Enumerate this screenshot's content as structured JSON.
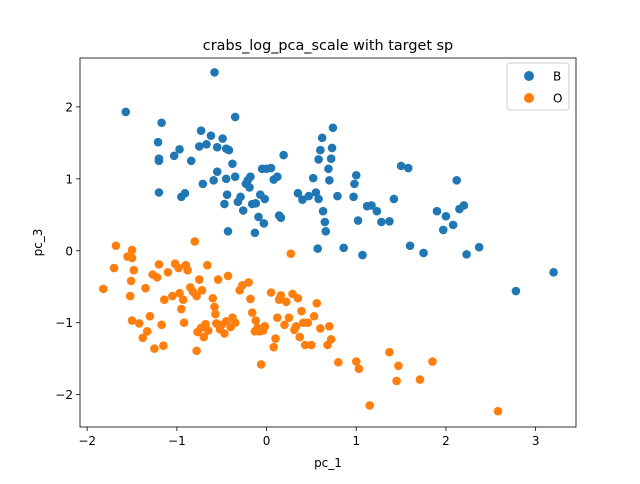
{
  "chart_data": {
    "type": "scatter",
    "title": "crabs_log_pca_scale with target sp",
    "xlabel": "pc_1",
    "ylabel": "pc_3",
    "xlim": [
      -2.08,
      3.45
    ],
    "ylim": [
      -2.45,
      2.68
    ],
    "x_ticks": [
      -2,
      -1,
      0,
      1,
      2,
      3
    ],
    "x_tick_labels": [
      "−2",
      "−1",
      "0",
      "1",
      "2",
      "3"
    ],
    "y_ticks": [
      -2,
      -1,
      0,
      1,
      2
    ],
    "y_tick_labels": [
      "−2",
      "−1",
      "0",
      "1",
      "2"
    ],
    "grid": false,
    "legend_position": "top-right",
    "series": [
      {
        "name": "B",
        "color": "#1f77b4",
        "points": [
          [
            -1.57,
            1.93
          ],
          [
            -0.58,
            2.48
          ],
          [
            -1.21,
            1.51
          ],
          [
            -1.17,
            1.78
          ],
          [
            -1.2,
            1.28
          ],
          [
            -1.2,
            1.25
          ],
          [
            -1.2,
            0.81
          ],
          [
            -1.03,
            1.32
          ],
          [
            -0.97,
            1.41
          ],
          [
            -0.95,
            0.75
          ],
          [
            -0.91,
            0.8
          ],
          [
            -0.84,
            1.25
          ],
          [
            -0.75,
            1.45
          ],
          [
            -0.73,
            1.67
          ],
          [
            -0.67,
            1.48
          ],
          [
            -0.62,
            1.6
          ],
          [
            -0.55,
            1.1
          ],
          [
            -0.55,
            1.44
          ],
          [
            -0.49,
            1.56
          ],
          [
            -0.45,
            1.42
          ],
          [
            -0.42,
            1.4
          ],
          [
            -0.38,
            1.21
          ],
          [
            -0.71,
            0.93
          ],
          [
            -0.59,
            0.98
          ],
          [
            -0.47,
            0.65
          ],
          [
            -0.44,
            0.78
          ],
          [
            -0.43,
            0.27
          ],
          [
            -0.35,
            1.03
          ],
          [
            -0.32,
            0.68
          ],
          [
            -0.29,
            0.75
          ],
          [
            -0.26,
            0.56
          ],
          [
            -0.23,
            0.93
          ],
          [
            -0.21,
            0.98
          ],
          [
            -0.19,
            0.88
          ],
          [
            -0.18,
            1.03
          ],
          [
            -0.16,
            0.65
          ],
          [
            -0.12,
            0.66
          ],
          [
            -0.09,
            0.47
          ],
          [
            -0.07,
            0.78
          ],
          [
            -0.05,
            1.14
          ],
          [
            -0.03,
            0.38
          ],
          [
            -0.02,
            0.72
          ],
          [
            0,
            1.14
          ],
          [
            0.05,
            1.15
          ],
          [
            0.08,
            0.99
          ],
          [
            0.12,
            1.03
          ],
          [
            0.14,
            0.49
          ],
          [
            0.16,
            0.46
          ],
          [
            0.19,
            1.33
          ],
          [
            -0.35,
            1.86
          ],
          [
            -0.45,
            1.0
          ],
          [
            -0.13,
            0.25
          ],
          [
            0.35,
            0.8
          ],
          [
            0.4,
            0.71
          ],
          [
            0.47,
            0.76
          ],
          [
            0.52,
            1.01
          ],
          [
            0.55,
            0.81
          ],
          [
            0.58,
            1.27
          ],
          [
            0.6,
            1.4
          ],
          [
            0.62,
            1.57
          ],
          [
            0.58,
            0.72
          ],
          [
            0.63,
            0.55
          ],
          [
            0.66,
            0.27
          ],
          [
            0.69,
            1.14
          ],
          [
            0.7,
            0.98
          ],
          [
            0.72,
            1.28
          ],
          [
            0.73,
            1.43
          ],
          [
            0.74,
            1.71
          ],
          [
            0.79,
            0.76
          ],
          [
            0.57,
            0.03
          ],
          [
            0.65,
            0.4
          ],
          [
            0.86,
            0.04
          ],
          [
            0.97,
            0.75
          ],
          [
            0.98,
            0.93
          ],
          [
            1.0,
            1.05
          ],
          [
            1.02,
            0.42
          ],
          [
            1.07,
            -0.06
          ],
          [
            1.12,
            0.62
          ],
          [
            1.17,
            0.63
          ],
          [
            1.23,
            0.55
          ],
          [
            1.28,
            0.4
          ],
          [
            1.37,
            0.41
          ],
          [
            1.42,
            0.72
          ],
          [
            1.5,
            1.18
          ],
          [
            1.58,
            1.15
          ],
          [
            1.6,
            0.07
          ],
          [
            1.75,
            -0.03
          ],
          [
            1.9,
            0.55
          ],
          [
            1.97,
            0.29
          ],
          [
            2.0,
            0.48
          ],
          [
            2.08,
            0.36
          ],
          [
            2.12,
            0.98
          ],
          [
            2.15,
            0.58
          ],
          [
            2.2,
            0.63
          ],
          [
            2.23,
            -0.05
          ],
          [
            2.37,
            0.05
          ],
          [
            2.78,
            -0.56
          ],
          [
            3.2,
            -0.3
          ]
        ]
      },
      {
        "name": "O",
        "color": "#ff7f0e",
        "points": [
          [
            -1.82,
            -0.53
          ],
          [
            -1.68,
            0.07
          ],
          [
            -1.7,
            -0.24
          ],
          [
            -1.55,
            -0.08
          ],
          [
            -1.5,
            0.01
          ],
          [
            -1.5,
            -0.1
          ],
          [
            -1.48,
            -0.27
          ],
          [
            -1.51,
            -0.42
          ],
          [
            -1.52,
            -0.63
          ],
          [
            -1.5,
            -0.97
          ],
          [
            -1.42,
            -1.01
          ],
          [
            -1.38,
            -1.21
          ],
          [
            -1.35,
            -0.52
          ],
          [
            -1.33,
            -1.12
          ],
          [
            -1.3,
            -0.91
          ],
          [
            -1.27,
            -0.33
          ],
          [
            -1.25,
            -1.36
          ],
          [
            -1.22,
            -0.37
          ],
          [
            -1.2,
            -0.19
          ],
          [
            -1.17,
            -1.03
          ],
          [
            -1.14,
            -0.68
          ],
          [
            -1.15,
            -1.32
          ],
          [
            -1.1,
            -0.3
          ],
          [
            -1.05,
            -0.63
          ],
          [
            -1.02,
            -0.18
          ],
          [
            -0.98,
            -0.24
          ],
          [
            -0.97,
            -0.59
          ],
          [
            -0.95,
            -0.81
          ],
          [
            -0.93,
            -0.68
          ],
          [
            -0.92,
            -1.0
          ],
          [
            -0.9,
            -0.2
          ],
          [
            -0.88,
            -0.27
          ],
          [
            -0.85,
            -0.51
          ],
          [
            -0.82,
            -0.57
          ],
          [
            -0.8,
            0.13
          ],
          [
            -0.78,
            -0.63
          ],
          [
            -0.78,
            -1.39
          ],
          [
            -0.77,
            -1.13
          ],
          [
            -0.75,
            -0.4
          ],
          [
            -0.73,
            -1.07
          ],
          [
            -0.72,
            -0.55
          ],
          [
            -0.7,
            -1.2
          ],
          [
            -0.68,
            -1.02
          ],
          [
            -0.66,
            -0.2
          ],
          [
            -0.65,
            -1.11
          ],
          [
            -0.6,
            -0.66
          ],
          [
            -0.58,
            -0.78
          ],
          [
            -0.57,
            -0.88
          ],
          [
            -0.56,
            -1.01
          ],
          [
            -0.54,
            -0.4
          ],
          [
            -0.52,
            -1.09
          ],
          [
            -0.5,
            -1.03
          ],
          [
            -0.47,
            -1.15
          ],
          [
            -0.45,
            -0.98
          ],
          [
            -0.43,
            -0.35
          ],
          [
            -0.4,
            -1.06
          ],
          [
            -0.38,
            -0.93
          ],
          [
            -0.35,
            -1.0
          ],
          [
            -0.3,
            -0.55
          ],
          [
            -0.27,
            -0.48
          ],
          [
            -0.2,
            -0.44
          ],
          [
            -0.18,
            -0.67
          ],
          [
            -0.16,
            -0.86
          ],
          [
            -0.13,
            -1.12
          ],
          [
            -0.12,
            -0.97
          ],
          [
            -0.1,
            -1.07
          ],
          [
            -0.08,
            -1.12
          ],
          [
            -0.06,
            -1.58
          ],
          [
            -0.04,
            -1.11
          ],
          [
            -0.02,
            -1.05
          ],
          [
            0.05,
            -0.58
          ],
          [
            0.08,
            -1.34
          ],
          [
            0.1,
            -1.22
          ],
          [
            0.12,
            -0.93
          ],
          [
            0.14,
            -0.68
          ],
          [
            0.16,
            -0.62
          ],
          [
            0.2,
            -1.03
          ],
          [
            0.22,
            -0.71
          ],
          [
            0.25,
            -0.93
          ],
          [
            0.27,
            -0.04
          ],
          [
            0.29,
            -0.6
          ],
          [
            0.31,
            -1.1
          ],
          [
            0.33,
            -1.05
          ],
          [
            0.35,
            -0.66
          ],
          [
            0.37,
            -1.2
          ],
          [
            0.39,
            -0.84
          ],
          [
            0.41,
            -1.0
          ],
          [
            0.43,
            -1.31
          ],
          [
            0.46,
            -1.0
          ],
          [
            0.5,
            -1.31
          ],
          [
            0.53,
            -0.91
          ],
          [
            0.56,
            -0.73
          ],
          [
            0.6,
            -1.08
          ],
          [
            0.68,
            -1.31
          ],
          [
            0.7,
            -1.05
          ],
          [
            0.72,
            -1.23
          ],
          [
            0.8,
            -1.55
          ],
          [
            1.0,
            -1.54
          ],
          [
            1.03,
            -1.64
          ],
          [
            1.15,
            -2.15
          ],
          [
            1.37,
            -1.41
          ],
          [
            1.45,
            -1.81
          ],
          [
            1.47,
            -1.6
          ],
          [
            1.71,
            -1.79
          ],
          [
            1.85,
            -1.54
          ],
          [
            2.58,
            -2.23
          ]
        ]
      }
    ]
  }
}
